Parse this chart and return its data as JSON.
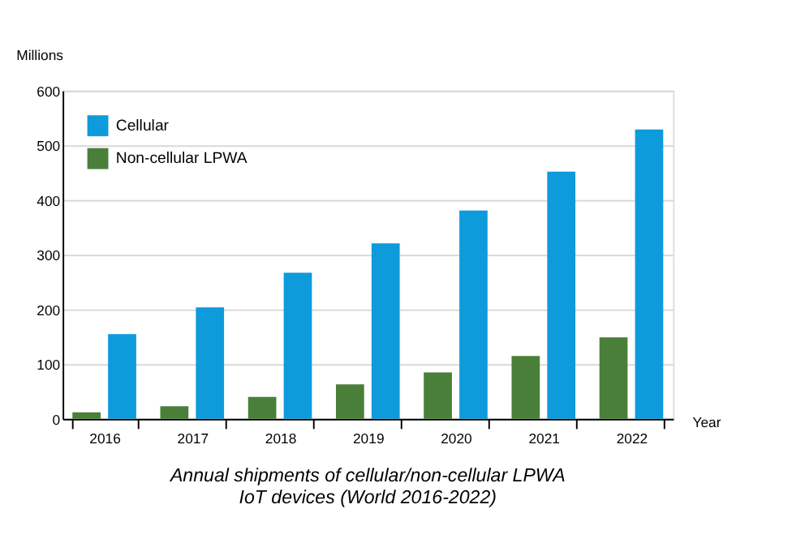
{
  "chart_data": {
    "type": "bar",
    "title": "Annual shipments of cellular/non-cellular LPWA IoT devices (World 2016-2022)",
    "xlabel": "Year",
    "ylabel": "Millions",
    "categories": [
      "2016",
      "2017",
      "2018",
      "2019",
      "2020",
      "2021",
      "2022"
    ],
    "series": [
      {
        "name": "Non-cellular LPWA",
        "color": "#4a7f3a",
        "values": [
          12,
          23,
          40,
          63,
          85,
          115,
          149
        ]
      },
      {
        "name": "Cellular",
        "color": "#0e9bdc",
        "values": [
          155,
          204,
          267,
          321,
          381,
          452,
          529
        ]
      }
    ],
    "ylim": [
      0,
      600
    ],
    "yticks": [
      0,
      100,
      200,
      300,
      400,
      500,
      600
    ],
    "grid": "y",
    "legend": "top left"
  }
}
